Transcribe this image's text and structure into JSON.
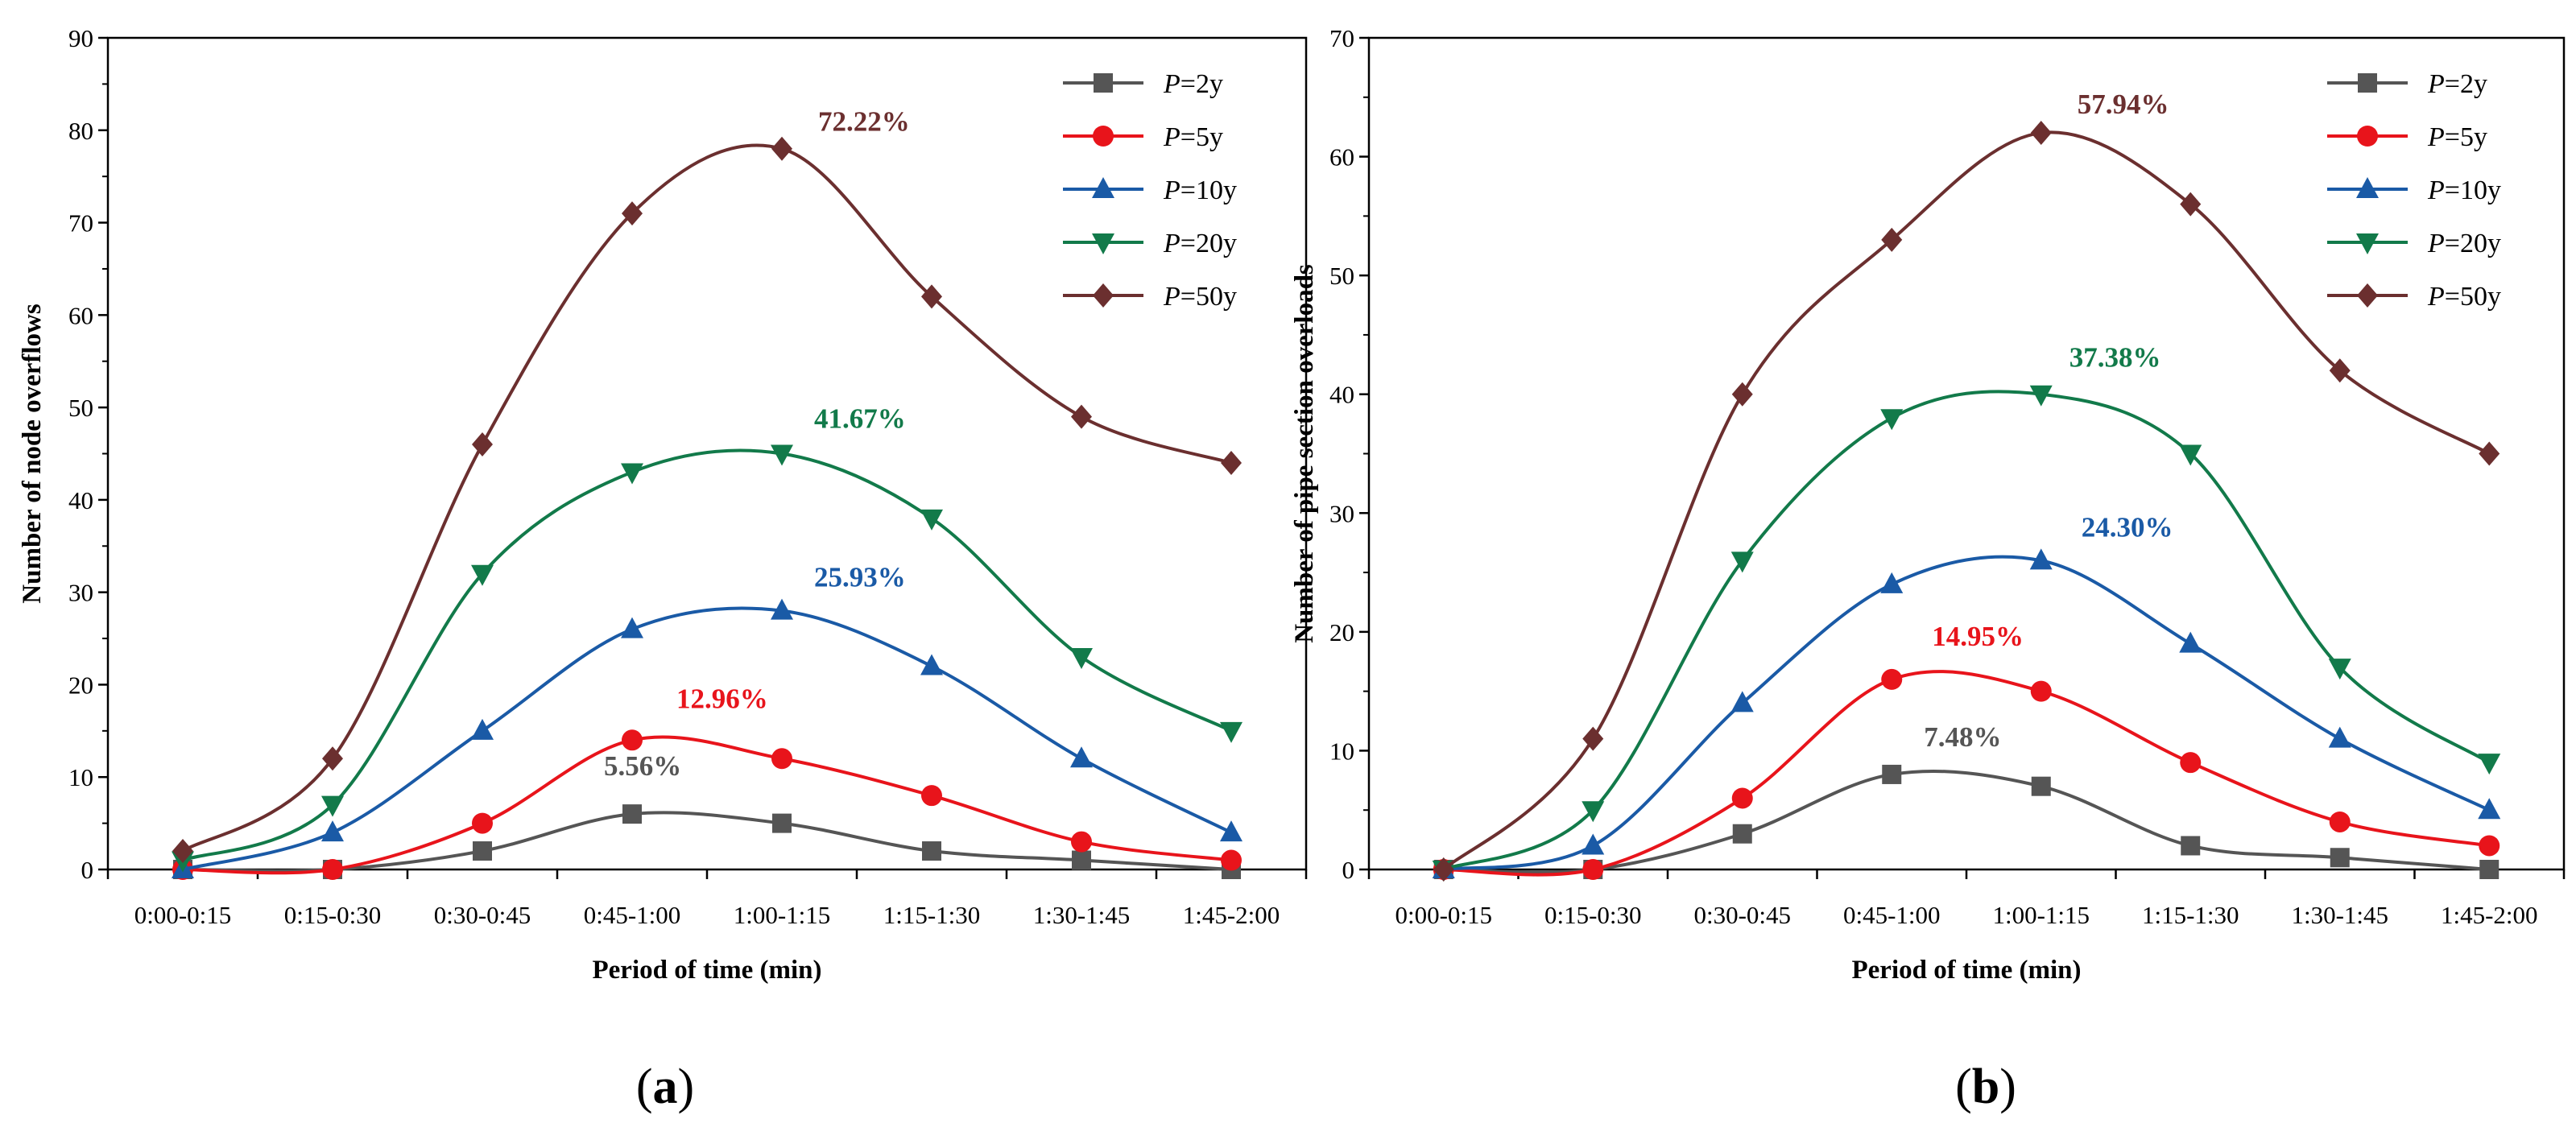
{
  "chart_data": [
    {
      "type": "line",
      "panel_label": "a",
      "xlabel": "Period of time (min)",
      "ylabel": "Number of node overflows",
      "ylim": [
        0,
        90
      ],
      "yticks": [
        0,
        10,
        20,
        30,
        40,
        50,
        60,
        70,
        80,
        90
      ],
      "categories": [
        "0:00-0:15",
        "0:15-0:30",
        "0:30-0:45",
        "0:45-1:00",
        "1:00-1:15",
        "1:15-1:30",
        "1:30-1:45",
        "1:45-2:00"
      ],
      "legend_position": "top-right",
      "series": [
        {
          "name": "P=2y",
          "prefix": "P",
          "suffix": "=2y",
          "color": "#555555",
          "marker": "square",
          "values": [
            0,
            0,
            2,
            6,
            5,
            2,
            1,
            0
          ]
        },
        {
          "name": "P=5y",
          "prefix": "P",
          "suffix": "=5y",
          "color": "#e8141b",
          "marker": "circle",
          "values": [
            0,
            0,
            5,
            14,
            12,
            8,
            3,
            1
          ]
        },
        {
          "name": "P=10y",
          "prefix": "P",
          "suffix": "=10y",
          "color": "#1a5aa6",
          "marker": "triangle-up",
          "values": [
            0,
            4,
            15,
            26,
            28,
            22,
            12,
            4
          ]
        },
        {
          "name": "P=20y",
          "prefix": "P",
          "suffix": "=20y",
          "color": "#127a4a",
          "marker": "triangle-down",
          "values": [
            1,
            7,
            32,
            43,
            45,
            38,
            23,
            15
          ]
        },
        {
          "name": "P=50y",
          "prefix": "P",
          "suffix": "=50y",
          "color": "#6b2f2f",
          "marker": "diamond",
          "values": [
            2,
            12,
            46,
            71,
            78,
            62,
            49,
            44
          ]
        }
      ],
      "annotations": [
        {
          "text": "5.56%",
          "series": "P=2y",
          "color": "#555555"
        },
        {
          "text": "12.96%",
          "series": "P=5y",
          "color": "#e8141b"
        },
        {
          "text": "25.93%",
          "series": "P=10y",
          "color": "#1a5aa6"
        },
        {
          "text": "41.67%",
          "series": "P=20y",
          "color": "#127a4a"
        },
        {
          "text": "72.22%",
          "series": "P=50y",
          "color": "#6b2f2f"
        }
      ]
    },
    {
      "type": "line",
      "panel_label": "b",
      "xlabel": "Period of time (min)",
      "ylabel": "Number of pipe section overloads",
      "ylim": [
        0,
        70
      ],
      "yticks": [
        0,
        10,
        20,
        30,
        40,
        50,
        60,
        70
      ],
      "categories": [
        "0:00-0:15",
        "0:15-0:30",
        "0:30-0:45",
        "0:45-1:00",
        "1:00-1:15",
        "1:15-1:30",
        "1:30-1:45",
        "1:45-2:00"
      ],
      "legend_position": "top-right",
      "series": [
        {
          "name": "P=2y",
          "prefix": "P",
          "suffix": "=2y",
          "color": "#555555",
          "marker": "square",
          "values": [
            0,
            0,
            3,
            8,
            7,
            2,
            1,
            0
          ]
        },
        {
          "name": "P=5y",
          "prefix": "P",
          "suffix": "=5y",
          "color": "#e8141b",
          "marker": "circle",
          "values": [
            0,
            0,
            6,
            16,
            15,
            9,
            4,
            2
          ]
        },
        {
          "name": "P=10y",
          "prefix": "P",
          "suffix": "=10y",
          "color": "#1a5aa6",
          "marker": "triangle-up",
          "values": [
            0,
            2,
            14,
            24,
            26,
            19,
            11,
            5
          ]
        },
        {
          "name": "P=20y",
          "prefix": "P",
          "suffix": "=20y",
          "color": "#127a4a",
          "marker": "triangle-down",
          "values": [
            0,
            5,
            26,
            38,
            40,
            35,
            17,
            9
          ]
        },
        {
          "name": "P=50y",
          "prefix": "P",
          "suffix": "=50y",
          "color": "#6b2f2f",
          "marker": "diamond",
          "values": [
            0,
            11,
            40,
            53,
            62,
            56,
            42,
            35
          ]
        }
      ],
      "annotations": [
        {
          "text": "7.48%",
          "series": "P=2y",
          "color": "#555555"
        },
        {
          "text": "14.95%",
          "series": "P=5y",
          "color": "#e8141b"
        },
        {
          "text": "24.30%",
          "series": "P=10y",
          "color": "#1a5aa6"
        },
        {
          "text": "37.38%",
          "series": "P=20y",
          "color": "#127a4a"
        },
        {
          "text": "57.94%",
          "series": "P=50y",
          "color": "#6b2f2f"
        }
      ]
    }
  ]
}
